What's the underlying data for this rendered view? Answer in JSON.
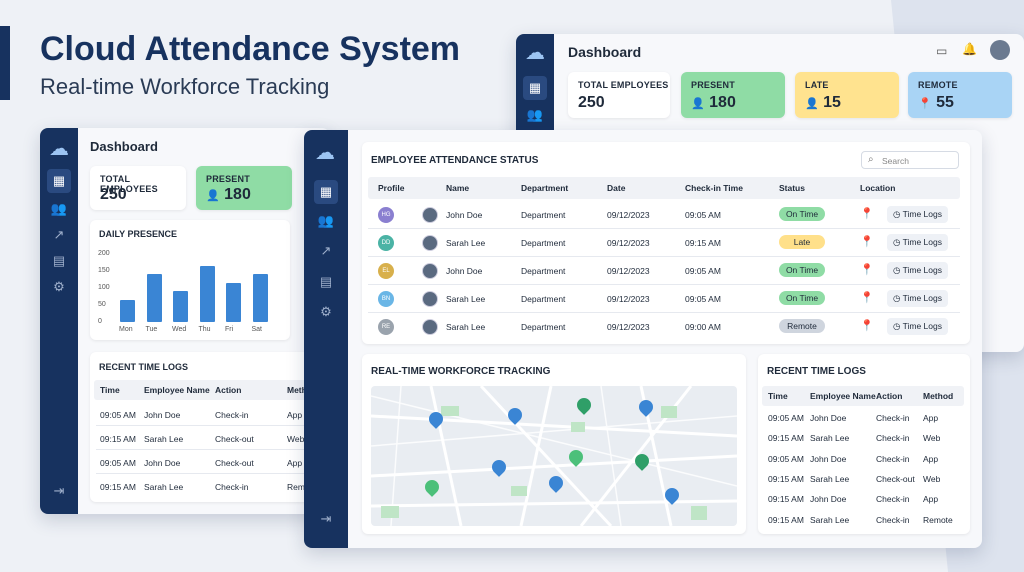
{
  "hero": {
    "title": "Cloud Attendance System",
    "subtitle": "Real-time Workforce Tracking"
  },
  "back_window": {
    "title": "Dashboard",
    "stats": [
      {
        "label": "TOTAL EMPLOYEES",
        "value": "250"
      },
      {
        "label": "PRESENT",
        "value": "180"
      },
      {
        "label": "LATE",
        "value": "15"
      },
      {
        "label": "REMOTE",
        "value": "55"
      }
    ]
  },
  "left_window": {
    "title": "Dashboard",
    "stats": [
      {
        "label": "TOTAL EMPLOYEES",
        "value": "250"
      },
      {
        "label": "PRESENT",
        "value": "180"
      }
    ],
    "presence_title": "DAILY PRESENCE",
    "chart_data": {
      "type": "bar",
      "categories": [
        "Mon",
        "Tue",
        "Wed",
        "Thu",
        "Fri",
        "Sat"
      ],
      "values": [
        65,
        140,
        90,
        165,
        115,
        140
      ],
      "ylim": [
        0,
        200
      ],
      "yticks": [
        0,
        50,
        100,
        150,
        200
      ]
    },
    "logs_title": "RECENT TIME LOGS",
    "log_headers": [
      "Time",
      "Employee Name",
      "Action",
      "Meth"
    ],
    "logs": [
      [
        "09:05 AM",
        "John Doe",
        "Check-in",
        "App"
      ],
      [
        "09:15 AM",
        "Sarah Lee",
        "Check-out",
        "Web"
      ],
      [
        "09:05 AM",
        "John Doe",
        "Check-out",
        "App"
      ],
      [
        "09:15 AM",
        "Sarah Lee",
        "Check-in",
        "Rem"
      ]
    ]
  },
  "main": {
    "attendance_title": "EMPLOYEE ATTENDANCE STATUS",
    "search_placeholder": "Search",
    "headers": [
      "Profile",
      "Name",
      "Department",
      "Date",
      "Check-in Time",
      "Status",
      "Location"
    ],
    "rows": [
      {
        "initials": "HG",
        "name": "John Doe",
        "dept": "Department",
        "date": "09/12/2023",
        "time": "09:05 AM",
        "status": "On Time",
        "status_color": "#8fdca5",
        "loc": "Time Logs"
      },
      {
        "initials": "DD",
        "name": "Sarah Lee",
        "dept": "Department",
        "date": "09/12/2023",
        "time": "09:15 AM",
        "status": "Late",
        "status_color": "#ffe08a",
        "loc": "Time Logs"
      },
      {
        "initials": "EL",
        "name": "John Doe",
        "dept": "Department",
        "date": "09/12/2023",
        "time": "09:05 AM",
        "status": "On Time",
        "status_color": "#8fdca5",
        "loc": "Time Logs"
      },
      {
        "initials": "BN",
        "name": "Sarah Lee",
        "dept": "Department",
        "date": "09/12/2023",
        "time": "09:05 AM",
        "status": "On Time",
        "status_color": "#8fdca5",
        "loc": "Time Logs"
      },
      {
        "initials": "RE",
        "name": "Sarah Lee",
        "dept": "Department",
        "date": "09/12/2023",
        "time": "09:00 AM",
        "status": "Remote",
        "status_color": "#cfd5de",
        "loc": "Time Logs"
      }
    ],
    "tracking_title": "REAL-TIME WORKFORCE TRACKING",
    "logs_title": "RECENT TIME LOGS",
    "log_headers": [
      "Time",
      "Employee Name",
      "Action",
      "Method"
    ],
    "logs": [
      [
        "09:05 AM",
        "John Doe",
        "Check-in",
        "App"
      ],
      [
        "09:15 AM",
        "Sarah Lee",
        "Check-in",
        "Web"
      ],
      [
        "09:05 AM",
        "John Doe",
        "Check-in",
        "App"
      ],
      [
        "09:15 AM",
        "Sarah Lee",
        "Check-out",
        "Web"
      ],
      [
        "09:15 AM",
        "John Doe",
        "Check-in",
        "App"
      ],
      [
        "09:15 AM",
        "Sarah Lee",
        "Check-in",
        "Remote"
      ]
    ]
  }
}
